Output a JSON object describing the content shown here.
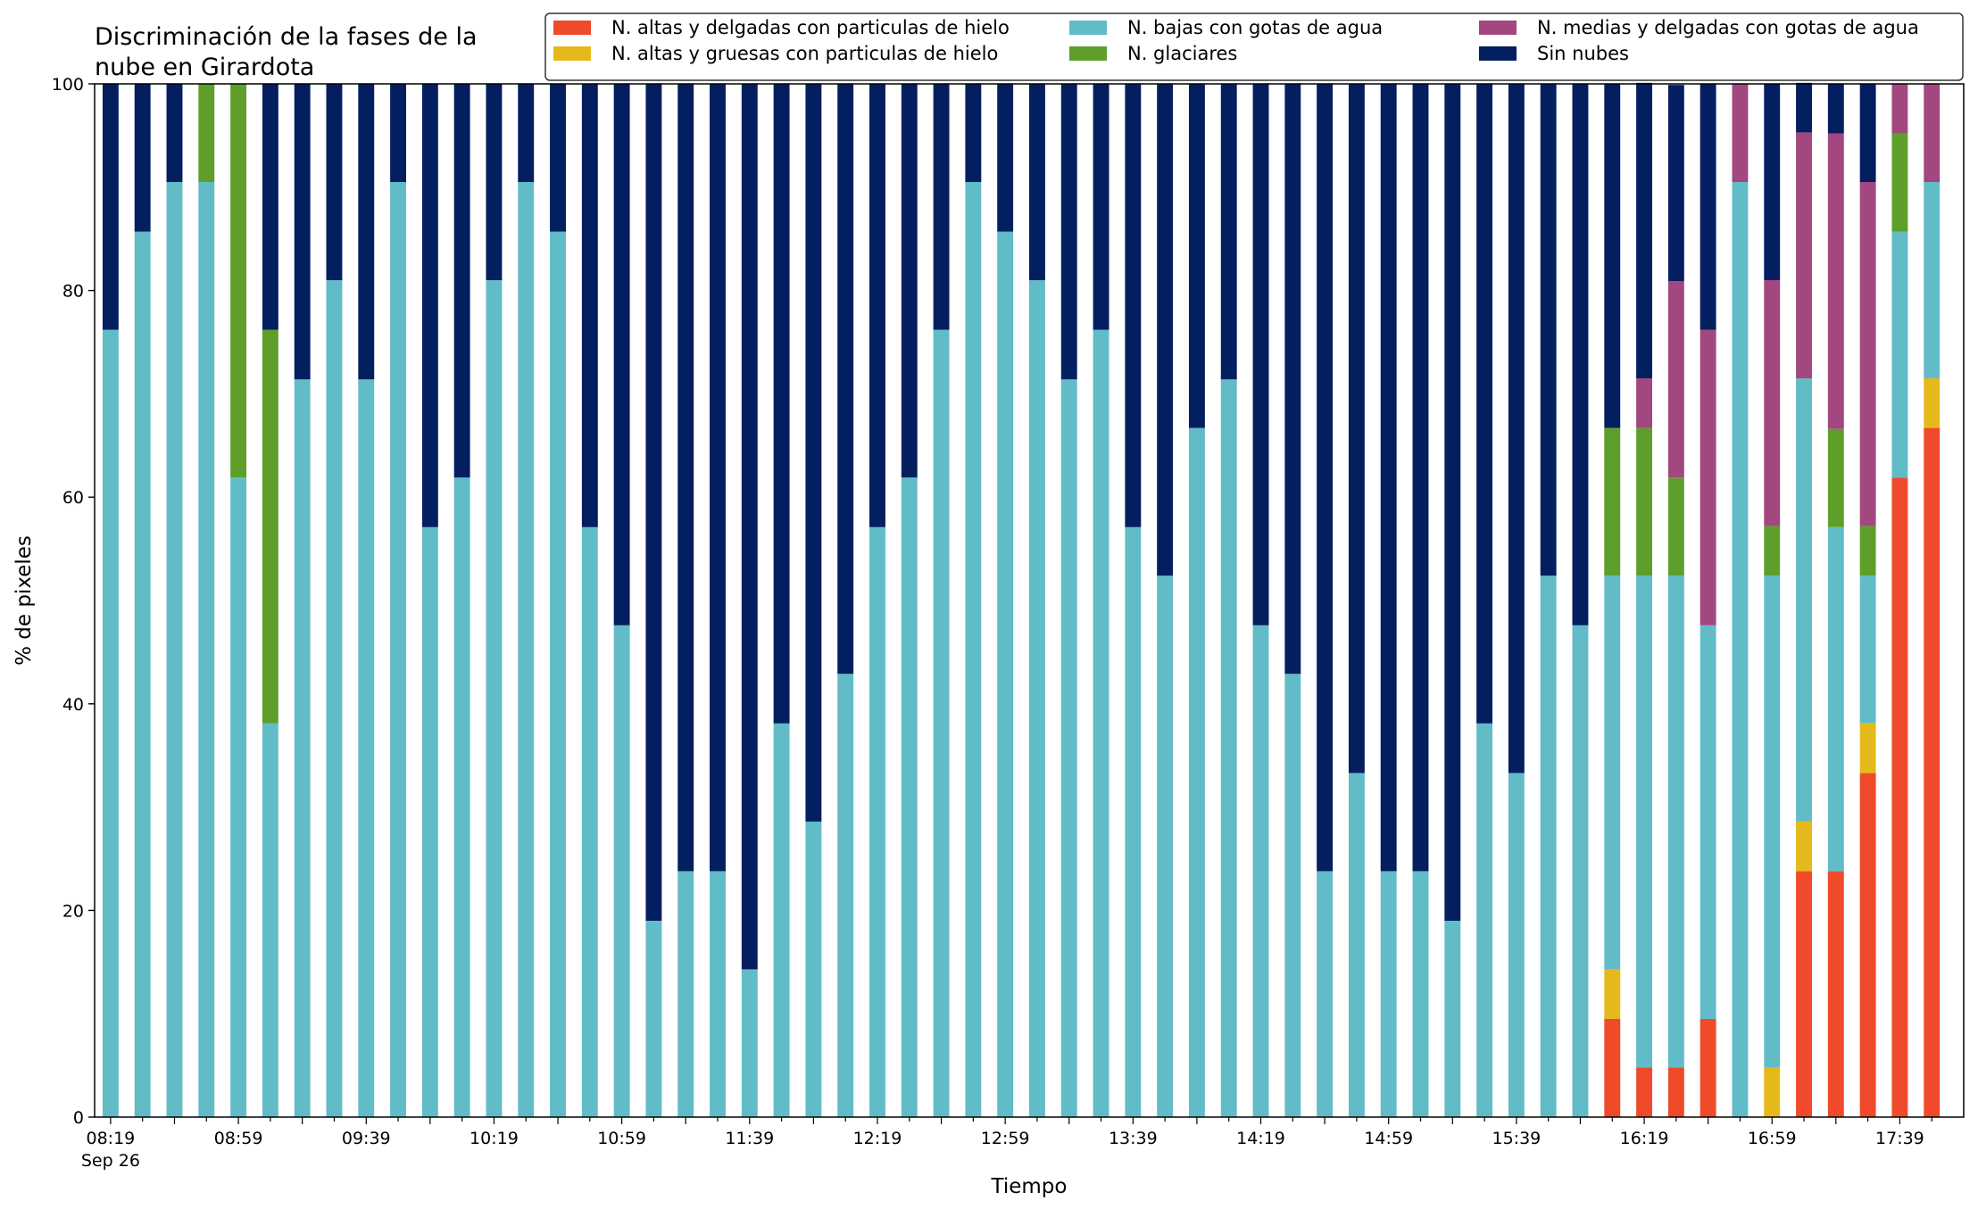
{
  "chart_data": {
    "type": "bar",
    "stacked": true,
    "title_lines": [
      "Discriminación de la fases de la",
      "nube en Girardota"
    ],
    "xlabel": "Tiempo",
    "ylabel": "% de pixeles",
    "ylim": [
      0,
      100
    ],
    "yticks": [
      0,
      20,
      40,
      60,
      80,
      100
    ],
    "grid": false,
    "legend_position": "top-right",
    "x_tick_labels": [
      {
        "index": 0,
        "label": "08:19",
        "sublabel": "Sep 26"
      },
      {
        "index": 4,
        "label": "08:59"
      },
      {
        "index": 8,
        "label": "09:39"
      },
      {
        "index": 12,
        "label": "10:19"
      },
      {
        "index": 16,
        "label": "10:59"
      },
      {
        "index": 20,
        "label": "11:39"
      },
      {
        "index": 24,
        "label": "12:19"
      },
      {
        "index": 28,
        "label": "12:59"
      },
      {
        "index": 32,
        "label": "13:39"
      },
      {
        "index": 36,
        "label": "14:19"
      },
      {
        "index": 40,
        "label": "14:59"
      },
      {
        "index": 44,
        "label": "15:39"
      },
      {
        "index": 48,
        "label": "16:19"
      },
      {
        "index": 52,
        "label": "16:59"
      },
      {
        "index": 56,
        "label": "17:39"
      }
    ],
    "series": [
      {
        "name": "N. altas y delgadas con particulas de hielo",
        "color": "#ef4a2a",
        "values": [
          0,
          0,
          0,
          0,
          0,
          0,
          0,
          0,
          0,
          0,
          0,
          0,
          0,
          0,
          0,
          0,
          0,
          0,
          0,
          0,
          0,
          0,
          0,
          0,
          0,
          0,
          0,
          0,
          0,
          0,
          0,
          0,
          0,
          0,
          0,
          0,
          0,
          0,
          0,
          0,
          0,
          0,
          0,
          0,
          0,
          0,
          0,
          9.5,
          4.8,
          4.8,
          9.5,
          0,
          0,
          23.8,
          23.8,
          33.3,
          61.9,
          66.7
        ]
      },
      {
        "name": "N. altas y gruesas con particulas de hielo",
        "color": "#e5b91c",
        "values": [
          0,
          0,
          0,
          0,
          0,
          0,
          0,
          0,
          0,
          0,
          0,
          0,
          0,
          0,
          0,
          0,
          0,
          0,
          0,
          0,
          0,
          0,
          0,
          0,
          0,
          0,
          0,
          0,
          0,
          0,
          0,
          0,
          0,
          0,
          0,
          0,
          0,
          0,
          0,
          0,
          0,
          0,
          0,
          0,
          0,
          0,
          0,
          4.8,
          0,
          0,
          0,
          0,
          4.8,
          4.8,
          0,
          4.8,
          0,
          4.8
        ]
      },
      {
        "name": "N. bajas con gotas de agua",
        "color": "#62bcc8",
        "values": [
          76.2,
          85.7,
          90.5,
          90.5,
          61.9,
          38.1,
          71.4,
          81.0,
          71.4,
          90.5,
          57.1,
          61.9,
          81.0,
          90.5,
          85.7,
          57.1,
          47.6,
          19.0,
          23.8,
          23.8,
          14.3,
          38.1,
          28.6,
          42.9,
          57.1,
          61.9,
          76.2,
          90.5,
          85.7,
          81.0,
          71.4,
          76.2,
          57.1,
          52.4,
          66.7,
          71.4,
          47.6,
          42.9,
          23.8,
          33.3,
          23.8,
          23.8,
          19.0,
          38.1,
          33.3,
          52.4,
          47.6,
          38.1,
          47.6,
          47.6,
          38.1,
          90.5,
          47.6,
          42.9,
          33.3,
          14.3,
          23.8,
          19.0
        ]
      },
      {
        "name": "N. glaciares",
        "color": "#5e9f2b",
        "values": [
          0,
          0,
          0,
          9.5,
          38.1,
          38.1,
          0,
          0,
          0,
          0,
          0,
          0,
          0,
          0,
          0,
          0,
          0,
          0,
          0,
          0,
          0,
          0,
          0,
          0,
          0,
          0,
          0,
          0,
          0,
          0,
          0,
          0,
          0,
          0,
          0,
          0,
          0,
          0,
          0,
          0,
          0,
          0,
          0,
          0,
          0,
          0,
          0,
          14.3,
          14.3,
          9.5,
          0,
          0,
          4.8,
          0,
          9.5,
          4.8,
          9.5,
          0
        ]
      },
      {
        "name": "N. medias y delgadas con gotas de agua",
        "color": "#a3477f",
        "values": [
          0,
          0,
          0,
          0,
          0,
          0,
          0,
          0,
          0,
          0,
          0,
          0,
          0,
          0,
          0,
          0,
          0,
          0,
          0,
          0,
          0,
          0,
          0,
          0,
          0,
          0,
          0,
          0,
          0,
          0,
          0,
          0,
          0,
          0,
          0,
          0,
          0,
          0,
          0,
          0,
          0,
          0,
          0,
          0,
          0,
          0,
          0,
          0,
          4.8,
          19.0,
          28.6,
          9.5,
          23.8,
          23.8,
          28.6,
          33.3,
          4.8,
          9.5
        ]
      },
      {
        "name": "Sin nubes",
        "color": "#041f60",
        "values": [
          23.8,
          14.3,
          9.5,
          0,
          0,
          23.8,
          28.6,
          19.0,
          28.6,
          9.5,
          42.9,
          38.1,
          19.0,
          9.5,
          14.3,
          42.9,
          52.4,
          81.0,
          76.2,
          76.2,
          85.7,
          61.9,
          71.4,
          57.1,
          42.9,
          38.1,
          23.8,
          9.5,
          14.3,
          19.0,
          28.6,
          23.8,
          42.9,
          47.6,
          33.3,
          28.6,
          52.4,
          57.1,
          76.2,
          66.7,
          76.2,
          76.2,
          81.0,
          61.9,
          66.7,
          47.6,
          52.4,
          33.3,
          28.6,
          19.0,
          23.8,
          0,
          19.0,
          4.8,
          4.8,
          9.5,
          0,
          0
        ]
      }
    ]
  }
}
